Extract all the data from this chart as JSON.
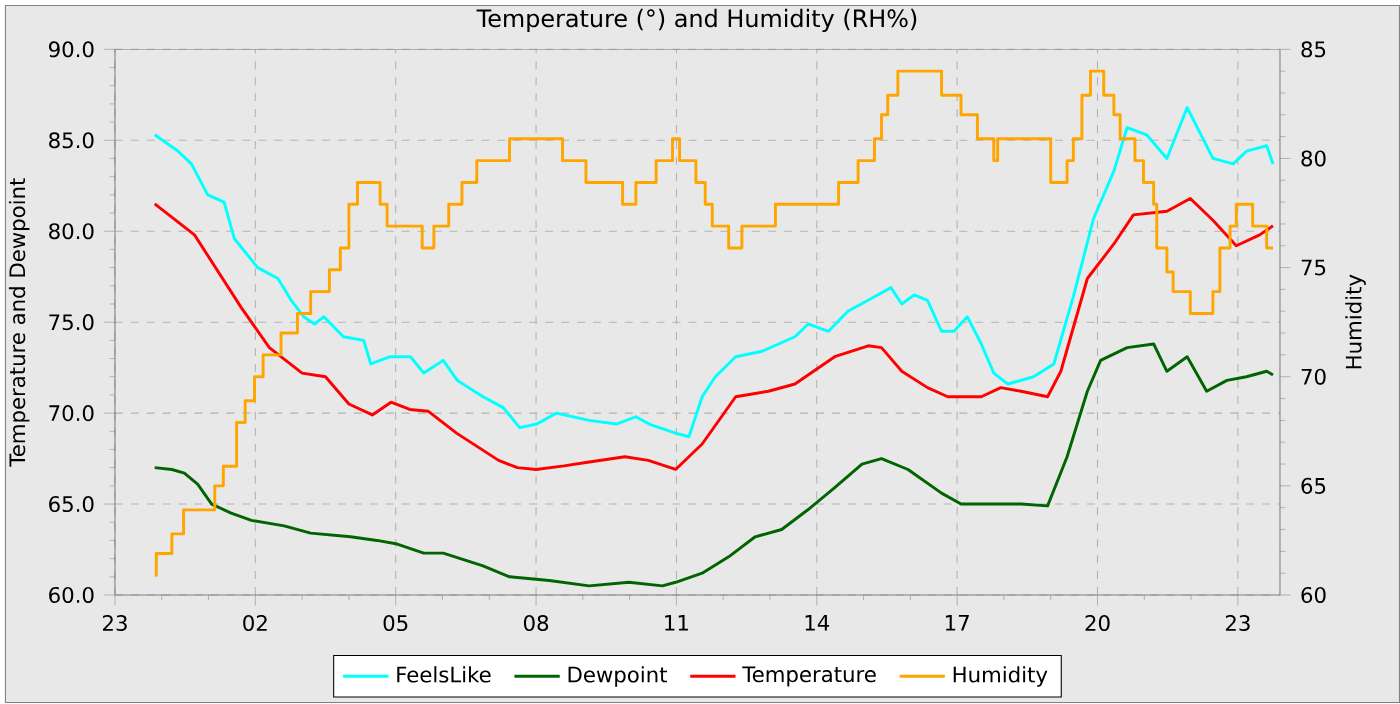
{
  "chart_data": {
    "type": "line",
    "title": "Temperature (°) and Humidity (RH%)",
    "ylabel": "Temperature and Dewpoint",
    "y2label": "Humidity",
    "xlim": [
      "--01-01T23:00",
      "--01-02T23:54"
    ],
    "xticks": [
      {
        "value": "--01-01T23:00",
        "label": "23"
      },
      {
        "value": "--01-02T02:00",
        "label": "02"
      },
      {
        "value": "--01-02T05:00",
        "label": "05"
      },
      {
        "value": "--01-02T08:00",
        "label": "08"
      },
      {
        "value": "--01-02T11:00",
        "label": "11"
      },
      {
        "value": "--01-02T14:00",
        "label": "14"
      },
      {
        "value": "--01-02T17:00",
        "label": "17"
      },
      {
        "value": "--01-02T20:00",
        "label": "20"
      },
      {
        "value": "--01-02T23:00",
        "label": "23"
      }
    ],
    "ylim": [
      60,
      90
    ],
    "yticks": [
      {
        "value": 60,
        "label": "60.0"
      },
      {
        "value": 65,
        "label": "65.0"
      },
      {
        "value": 70,
        "label": "70.0"
      },
      {
        "value": 75,
        "label": "75.0"
      },
      {
        "value": 80,
        "label": "80.0"
      },
      {
        "value": 85,
        "label": "85.0"
      },
      {
        "value": 90,
        "label": "90.0"
      }
    ],
    "y2lim": [
      60,
      85
    ],
    "y2ticks": [
      60,
      65,
      70,
      75,
      80,
      85
    ],
    "grid": true,
    "legend": "bottom",
    "series": [
      {
        "name": "FeelsLike",
        "color": "#00ffff",
        "x": [
          "--01-01T23:51",
          "--01-02T00:21",
          "--01-02T00:38",
          "--01-02T00:59",
          "--01-02T01:20",
          "--01-02T01:33",
          "--01-02T02:03",
          "--01-02T02:29",
          "--01-02T02:46",
          "--01-02T03:02",
          "--01-02T03:16",
          "--01-02T03:28",
          "--01-02T03:53",
          "--01-02T04:19",
          "--01-02T04:28",
          "--01-02T04:53",
          "--01-02T05:19",
          "--01-02T05:36",
          "--01-02T06:01",
          "--01-02T06:19",
          "--01-02T06:52",
          "--01-02T07:18",
          "--01-02T07:39",
          "--01-02T08:01",
          "--01-02T08:26",
          "--01-02T09:08",
          "--01-02T09:43",
          "--01-02T10:08",
          "--01-02T10:25",
          "--01-02T10:59",
          "--01-02T11:16",
          "--01-02T11:33",
          "--01-02T11:50",
          "--01-02T12:16",
          "--01-02T12:50",
          "--01-02T13:32",
          "--01-02T13:49",
          "--01-02T14:15",
          "--01-02T14:40",
          "--01-02T15:14",
          "--01-02T15:35",
          "--01-02T15:49",
          "--01-02T16:05",
          "--01-02T16:22",
          "--01-02T16:40",
          "--01-02T16:56",
          "--01-02T17:13",
          "--01-02T17:31",
          "--01-02T17:47",
          "--01-02T18:05",
          "--01-02T18:38",
          "--01-02T19:04",
          "--01-02T19:29",
          "--01-02T19:55",
          "--01-02T20:21",
          "--01-02T20:38",
          "--01-02T21:03",
          "--01-02T21:29",
          "--01-02T21:55",
          "--01-02T22:28",
          "--01-02T22:54",
          "--01-02T23:11",
          "--01-02T23:37",
          "--01-02T23:45"
        ],
        "values": [
          85.3,
          84.4,
          83.7,
          82.0,
          81.6,
          79.6,
          78.0,
          77.4,
          76.2,
          75.3,
          74.9,
          75.3,
          74.2,
          74.0,
          72.7,
          73.1,
          73.1,
          72.2,
          72.9,
          71.8,
          70.9,
          70.3,
          69.2,
          69.4,
          70.0,
          69.6,
          69.4,
          69.8,
          69.4,
          68.9,
          68.7,
          70.9,
          72.0,
          73.1,
          73.4,
          74.2,
          74.9,
          74.5,
          75.6,
          76.4,
          76.9,
          76.0,
          76.5,
          76.2,
          74.5,
          74.5,
          75.3,
          73.8,
          72.2,
          71.6,
          72.0,
          72.7,
          76.4,
          80.7,
          83.3,
          85.7,
          85.3,
          84.0,
          86.8,
          84.0,
          83.7,
          84.4,
          84.7,
          83.7
        ]
      },
      {
        "name": "Dewpoint",
        "color": "#006400",
        "x": [
          "--01-01T23:51",
          "--01-02T00:13",
          "--01-02T00:29",
          "--01-02T00:46",
          "--01-02T01:04",
          "--01-02T01:29",
          "--01-02T01:55",
          "--01-02T02:37",
          "--01-02T03:11",
          "--01-02T04:02",
          "--01-02T04:36",
          "--01-02T05:02",
          "--01-02T05:36",
          "--01-02T06:01",
          "--01-02T06:52",
          "--01-02T07:26",
          "--01-02T08:17",
          "--01-02T09:08",
          "--01-02T09:59",
          "--01-02T10:42",
          "--01-02T10:59",
          "--01-02T11:33",
          "--01-02T12:07",
          "--01-02T12:41",
          "--01-02T13:15",
          "--01-02T13:49",
          "--01-02T14:23",
          "--01-02T14:58",
          "--01-02T15:23",
          "--01-02T15:57",
          "--01-02T16:40",
          "--01-02T17:05",
          "--01-02T17:47",
          "--01-02T18:22",
          "--01-02T18:56",
          "--01-02T19:21",
          "--01-02T19:47",
          "--01-02T20:04",
          "--01-02T20:38",
          "--01-02T21:12",
          "--01-02T21:29",
          "--01-02T21:55",
          "--01-02T22:20",
          "--01-02T22:46",
          "--01-02T23:11",
          "--01-02T23:37",
          "--01-02T23:45"
        ],
        "values": [
          67.0,
          66.9,
          66.7,
          66.1,
          65.0,
          64.5,
          64.1,
          63.8,
          63.4,
          63.2,
          63.0,
          62.8,
          62.3,
          62.3,
          61.6,
          61.0,
          60.8,
          60.5,
          60.7,
          60.5,
          60.7,
          61.2,
          62.1,
          63.2,
          63.6,
          64.7,
          65.9,
          67.2,
          67.5,
          66.9,
          65.6,
          65.0,
          65.0,
          65.0,
          64.9,
          67.6,
          71.2,
          72.9,
          73.6,
          73.8,
          72.3,
          73.1,
          71.2,
          71.8,
          72.0,
          72.3,
          72.1
        ]
      },
      {
        "name": "Temperature",
        "color": "#ff0000",
        "x": [
          "--01-01T23:51",
          "--01-02T00:42",
          "--01-02T01:12",
          "--01-02T01:42",
          "--01-02T02:18",
          "--01-02T03:00",
          "--01-02T03:30",
          "--01-02T04:00",
          "--01-02T04:30",
          "--01-02T04:54",
          "--01-02T05:18",
          "--01-02T05:42",
          "--01-02T06:18",
          "--01-02T07:12",
          "--01-02T07:36",
          "--01-02T08:00",
          "--01-02T08:36",
          "--01-02T09:06",
          "--01-02T09:54",
          "--01-02T10:24",
          "--01-02T10:59",
          "--01-02T11:33",
          "--01-02T12:16",
          "--01-02T12:58",
          "--01-02T13:32",
          "--01-02T14:23",
          "--01-02T15:06",
          "--01-02T15:23",
          "--01-02T15:49",
          "--01-02T16:22",
          "--01-02T16:48",
          "--01-02T17:31",
          "--01-02T17:56",
          "--01-02T18:22",
          "--01-02T18:56",
          "--01-02T19:13",
          "--01-02T19:47",
          "--01-02T20:21",
          "--01-02T20:46",
          "--01-02T21:29",
          "--01-02T21:59",
          "--01-02T22:28",
          "--01-02T22:58",
          "--01-02T23:28",
          "--01-02T23:45"
        ],
        "values": [
          81.5,
          79.8,
          77.8,
          75.8,
          73.6,
          72.2,
          72.0,
          70.5,
          69.9,
          70.6,
          70.2,
          70.1,
          68.9,
          67.4,
          67.0,
          66.9,
          67.1,
          67.3,
          67.6,
          67.4,
          66.9,
          68.3,
          70.9,
          71.2,
          71.6,
          73.1,
          73.7,
          73.6,
          72.3,
          71.4,
          70.9,
          70.9,
          71.4,
          71.2,
          70.9,
          72.3,
          77.4,
          79.3,
          80.9,
          81.1,
          81.8,
          80.6,
          79.2,
          79.8,
          80.3
        ]
      },
      {
        "name": "Humidity",
        "color": "#ffa500",
        "type": "step",
        "axis": "y2",
        "x": [
          "--01-01T23:51",
          "--01-01T23:53",
          "--01-02T00:13",
          "--01-02T00:28",
          "--01-02T01:08",
          "--01-02T01:19",
          "--01-02T01:36",
          "--01-02T01:47",
          "--01-02T01:59",
          "--01-02T02:10",
          "--01-02T02:33",
          "--01-02T02:54",
          "--01-02T03:11",
          "--01-02T03:35",
          "--01-02T03:49",
          "--01-02T04:00",
          "--01-02T04:11",
          "--01-02T04:40",
          "--01-02T04:49",
          "--01-02T05:34",
          "--01-02T05:49",
          "--01-02T06:08",
          "--01-02T06:25",
          "--01-02T06:44",
          "--01-02T07:26",
          "--01-02T08:34",
          "--01-02T09:04",
          "--01-02T09:51",
          "--01-02T10:08",
          "--01-02T10:34",
          "--01-02T10:55",
          "--01-02T11:04",
          "--01-02T11:25",
          "--01-02T11:37",
          "--01-02T11:46",
          "--01-02T12:07",
          "--01-02T12:24",
          "--01-02T13:07",
          "--01-02T14:28",
          "--01-02T14:53",
          "--01-02T15:14",
          "--01-02T15:23",
          "--01-02T15:31",
          "--01-02T15:44",
          "--01-02T16:40",
          "--01-02T17:05",
          "--01-02T17:26",
          "--01-02T17:47",
          "--01-02T17:52",
          "--01-02T19:00",
          "--01-02T19:21",
          "--01-02T19:29",
          "--01-02T19:40",
          "--01-02T19:51",
          "--01-02T20:08",
          "--01-02T20:21",
          "--01-02T20:29",
          "--01-02T20:48",
          "--01-02T20:59",
          "--01-02T21:12",
          "--01-02T21:16",
          "--01-02T21:29",
          "--01-02T21:37",
          "--01-02T21:59",
          "--01-02T22:28",
          "--01-02T22:37",
          "--01-02T22:50",
          "--01-02T22:58",
          "--01-02T23:19",
          "--01-02T23:37",
          "--01-02T23:45"
        ],
        "values": [
          60.9,
          61.9,
          62.8,
          63.9,
          65.0,
          65.9,
          67.9,
          68.9,
          70.0,
          71.0,
          72.0,
          72.9,
          73.9,
          74.9,
          75.9,
          77.9,
          78.9,
          77.9,
          76.9,
          75.9,
          76.9,
          77.9,
          78.9,
          79.9,
          80.9,
          79.9,
          78.9,
          77.9,
          78.9,
          79.9,
          80.9,
          79.9,
          78.9,
          77.9,
          76.9,
          75.9,
          76.9,
          77.9,
          78.9,
          79.9,
          80.9,
          82.0,
          82.9,
          84.0,
          82.9,
          82.0,
          80.9,
          79.9,
          80.9,
          78.9,
          79.9,
          80.9,
          82.9,
          84.0,
          82.9,
          82.0,
          80.9,
          79.9,
          78.9,
          77.9,
          75.9,
          74.8,
          73.9,
          72.9,
          73.9,
          75.9,
          76.9,
          77.9,
          76.9,
          75.9,
          75.9
        ]
      }
    ]
  }
}
